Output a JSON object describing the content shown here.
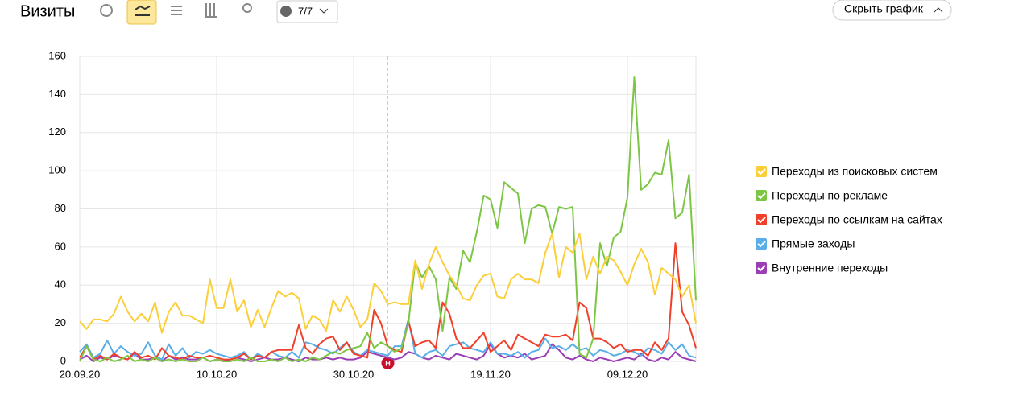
{
  "header": {
    "title": "Визиты",
    "filter": "7/7",
    "hide_button": "Скрыть график"
  },
  "chart_data": {
    "type": "line",
    "categories": [
      "20.09.20",
      null,
      null,
      null,
      null,
      null,
      null,
      null,
      null,
      null,
      null,
      null,
      null,
      null,
      null,
      null,
      null,
      null,
      null,
      null,
      "10.10.20",
      null,
      null,
      null,
      null,
      null,
      null,
      null,
      null,
      null,
      null,
      null,
      null,
      null,
      null,
      null,
      null,
      null,
      null,
      null,
      "30.10.20",
      null,
      null,
      null,
      null,
      null,
      null,
      null,
      null,
      null,
      null,
      null,
      null,
      null,
      null,
      null,
      null,
      null,
      null,
      null,
      "19.11.20",
      null,
      null,
      null,
      null,
      null,
      null,
      null,
      null,
      null,
      null,
      null,
      null,
      null,
      null,
      null,
      null,
      null,
      null,
      null,
      "09.12.20",
      null,
      null,
      null,
      null,
      null,
      null,
      null,
      null,
      null,
      null
    ],
    "ylim": [
      0,
      160
    ],
    "yticks": [
      0,
      20,
      40,
      60,
      80,
      100,
      120,
      140,
      160
    ],
    "grid": true,
    "legend": "right",
    "annotations": [
      {
        "category": 45,
        "label": "Н"
      }
    ],
    "series": [
      {
        "name": "Переходы из поисковых систем",
        "color": "#fbcf3a",
        "values": [
          21,
          17,
          22,
          22,
          21,
          25,
          34,
          26,
          21,
          25,
          21,
          31,
          15,
          26,
          31,
          24,
          24,
          22,
          20,
          43,
          28,
          28,
          43,
          26,
          32,
          18,
          27,
          18,
          28,
          37,
          34,
          36,
          33,
          17,
          24,
          22,
          16,
          32,
          26,
          34,
          27,
          18,
          22,
          41,
          37,
          30,
          31,
          30,
          30,
          53,
          38,
          51,
          60,
          52,
          45,
          40,
          33,
          32,
          40,
          45,
          46,
          34,
          33,
          43,
          46,
          43,
          43,
          41,
          57,
          67,
          44,
          60,
          57,
          67,
          43,
          55,
          46,
          55,
          53,
          47,
          40,
          51,
          59,
          52,
          35,
          49,
          46,
          43,
          34,
          40,
          20
        ]
      },
      {
        "name": "Переходы по рекламе",
        "color": "#7cc644",
        "values": [
          0,
          8,
          1,
          0,
          2,
          0,
          1,
          3,
          0,
          1,
          0,
          2,
          0,
          1,
          0,
          1,
          0,
          0,
          2,
          0,
          1,
          0,
          0,
          1,
          0,
          2,
          0,
          0,
          1,
          0,
          2,
          0,
          1,
          0,
          2,
          1,
          3,
          5,
          4,
          6,
          7,
          8,
          15,
          7,
          10,
          8,
          5,
          7,
          20,
          52,
          44,
          50,
          43,
          16,
          44,
          38,
          58,
          52,
          68,
          87,
          85,
          70,
          94,
          91,
          88,
          62,
          80,
          82,
          81,
          67,
          81,
          80,
          81,
          4,
          2,
          12,
          62,
          50,
          65,
          68,
          86,
          149,
          90,
          93,
          99,
          98,
          116,
          75,
          78,
          98,
          32
        ]
      },
      {
        "name": "Переходы по ссылкам на сайтах",
        "color": "#f0402a",
        "values": [
          2,
          8,
          1,
          3,
          1,
          4,
          2,
          1,
          5,
          2,
          3,
          1,
          7,
          3,
          2,
          1,
          3,
          2,
          2,
          3,
          2,
          1,
          1,
          2,
          4,
          1,
          3,
          2,
          5,
          6,
          6,
          6,
          19,
          7,
          4,
          9,
          12,
          13,
          6,
          10,
          4,
          3,
          2,
          27,
          20,
          8,
          6,
          5,
          21,
          8,
          10,
          11,
          7,
          31,
          25,
          12,
          7,
          7,
          11,
          15,
          5,
          8,
          11,
          6,
          14,
          12,
          10,
          8,
          14,
          13,
          13,
          14,
          11,
          31,
          28,
          12,
          12,
          10,
          7,
          9,
          5,
          6,
          6,
          3,
          10,
          6,
          12,
          62,
          26,
          19,
          7
        ]
      },
      {
        "name": "Прямые заходы",
        "color": "#5aaee8",
        "values": [
          5,
          9,
          2,
          4,
          11,
          4,
          8,
          5,
          3,
          4,
          10,
          3,
          1,
          9,
          3,
          7,
          2,
          5,
          4,
          6,
          4,
          3,
          2,
          3,
          5,
          1,
          4,
          2,
          5,
          3,
          2,
          5,
          2,
          10,
          9,
          7,
          6,
          4,
          7,
          10,
          5,
          3,
          6,
          5,
          4,
          3,
          8,
          8,
          22,
          4,
          2,
          5,
          6,
          3,
          8,
          9,
          10,
          7,
          6,
          5,
          10,
          4,
          4,
          3,
          5,
          2,
          5,
          6,
          12,
          7,
          8,
          6,
          9,
          6,
          7,
          3,
          6,
          5,
          3,
          4,
          6,
          5,
          3,
          7,
          6,
          4,
          10,
          6,
          9,
          3,
          2
        ]
      },
      {
        "name": "Внутренние переходы",
        "color": "#9b3db5",
        "values": [
          1,
          3,
          0,
          2,
          1,
          3,
          2,
          1,
          4,
          1,
          1,
          2,
          0,
          3,
          1,
          2,
          1,
          1,
          2,
          0,
          1,
          0,
          1,
          2,
          1,
          0,
          1,
          2,
          1,
          1,
          2,
          1,
          0,
          2,
          1,
          1,
          2,
          1,
          2,
          1,
          1,
          2,
          5,
          4,
          3,
          2,
          1,
          2,
          5,
          4,
          2,
          1,
          3,
          2,
          1,
          4,
          3,
          2,
          1,
          3,
          9,
          4,
          2,
          3,
          2,
          4,
          1,
          2,
          3,
          9,
          6,
          2,
          1,
          3,
          1,
          0,
          2,
          1,
          0,
          1,
          2,
          1,
          4,
          1,
          0,
          2,
          1,
          5,
          2,
          1,
          0
        ]
      }
    ]
  }
}
